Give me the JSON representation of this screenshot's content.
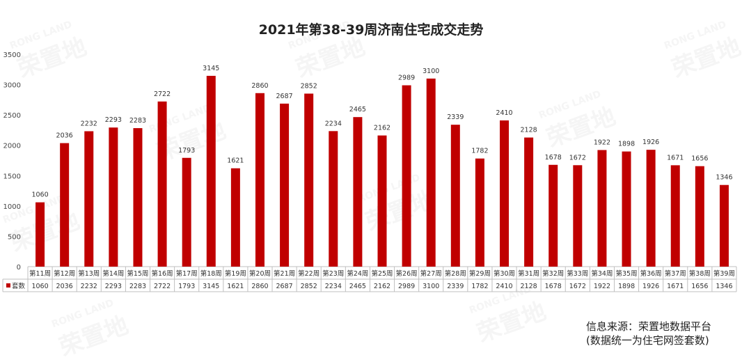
{
  "chart_data": {
    "type": "bar",
    "title": "2021年第38-39周济南住宅成交走势",
    "categories": [
      "第11周",
      "第12周",
      "第13周",
      "第14周",
      "第15周",
      "第16周",
      "第17周",
      "第18周",
      "第19周",
      "第20周",
      "第21周",
      "第22周",
      "第23周",
      "第24周",
      "第25周",
      "第26周",
      "第27周",
      "第28周",
      "第29周",
      "第30周",
      "第31周",
      "第32周",
      "第33周",
      "第34周",
      "第35周",
      "第36周",
      "第37周",
      "第38周",
      "第39周"
    ],
    "series": [
      {
        "name": "套数",
        "values": [
          1060,
          2036,
          2232,
          2293,
          2283,
          2722,
          1793,
          3145,
          1621,
          2860,
          2687,
          2852,
          2234,
          2465,
          2162,
          2989,
          3100,
          2339,
          1782,
          2410,
          2128,
          1678,
          1672,
          1922,
          1898,
          1926,
          1671,
          1656,
          1346
        ]
      }
    ],
    "ylim": [
      0,
      3500
    ],
    "yticks": [
      0,
      500,
      1000,
      1500,
      2000,
      2500,
      3000,
      3500
    ],
    "bar_color": "#C00000",
    "grid": false,
    "legend": "data-table"
  },
  "source": {
    "line1": "信息来源：荣置地数据平台",
    "line2": "(数据统一为住宅网签套数)"
  },
  "watermark": {
    "text": "荣置地",
    "subtext": "RONG LAND"
  }
}
